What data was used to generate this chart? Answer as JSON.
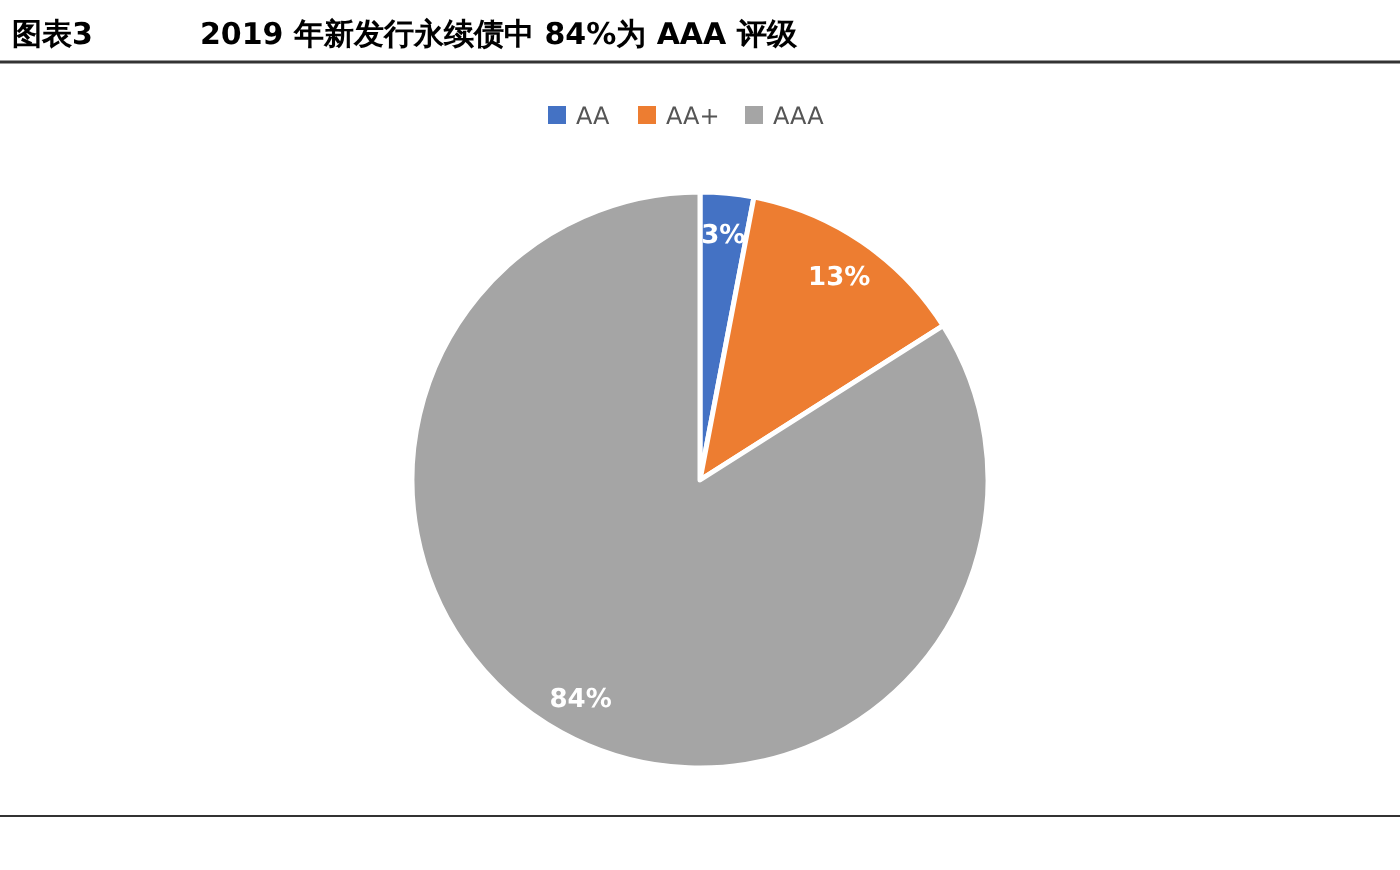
{
  "chart_data": {
    "type": "pie",
    "title": "2019 年新发行永续债中 84%为 AAA 评级",
    "annotations": [
      "图表3"
    ],
    "categories": [
      "AA",
      "AA+",
      "AAA"
    ],
    "values": [
      3,
      13,
      84
    ],
    "colors": [
      "#4472c4",
      "#ed7d31",
      "#a5a5a5"
    ],
    "value_labels": [
      "3%",
      "13%",
      "84%"
    ],
    "legend": "top"
  }
}
